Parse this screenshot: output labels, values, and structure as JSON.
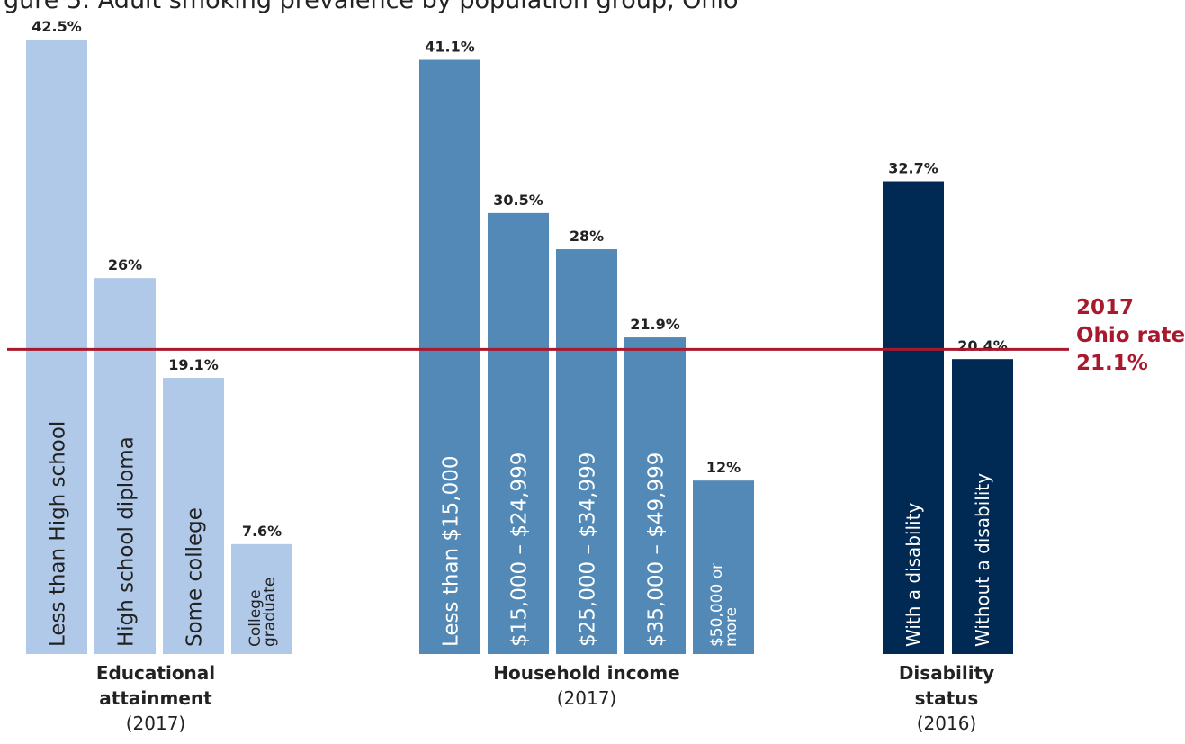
{
  "title": "gure 5: Adult smoking prevalence by population group, Ohio",
  "colors": {
    "education": "#b0c9e8",
    "income": "#5289b6",
    "disability": "#002a54",
    "reference": "#a8192e",
    "value_label": "#222222",
    "bar_label_light": "#222222",
    "bar_label_dark": "#ffffff"
  },
  "reference_line": {
    "value": 21.1,
    "label_lines": [
      "2017",
      "Ohio rate",
      "21.1%"
    ]
  },
  "groups": [
    {
      "name": "Educational attainment",
      "title_lines": [
        "Educational",
        "attainment"
      ],
      "year": "(2017)"
    },
    {
      "name": "Household income",
      "title_lines": [
        "Household income"
      ],
      "year": "(2017)"
    },
    {
      "name": "Disability status",
      "title_lines": [
        "Disability",
        "status"
      ],
      "year": "(2016)"
    }
  ],
  "chart_data": {
    "type": "bar",
    "title": "",
    "xlabel": "",
    "ylabel": "",
    "ylim": [
      0,
      45
    ],
    "grid": false,
    "unit": "%",
    "series": [
      {
        "group": "Educational attainment",
        "categories": [
          "Less than High school",
          "High school diploma",
          "Some college",
          "College graduate"
        ],
        "values": [
          42.5,
          26,
          19.1,
          7.6
        ],
        "labels": [
          "42.5%",
          "26%",
          "19.1%",
          "7.6%"
        ]
      },
      {
        "group": "Household income",
        "categories": [
          "Less than $15,000",
          "$15,000 – $24,999",
          "$25,000 – $34,999",
          "$35,000 – $49,999",
          "$50,000 or more"
        ],
        "values": [
          41.1,
          30.5,
          28,
          21.9,
          12
        ],
        "labels": [
          "41.1%",
          "30.5%",
          "28%",
          "21.9%",
          "12%"
        ]
      },
      {
        "group": "Disability status",
        "categories": [
          "With a disability",
          "Without a disability"
        ],
        "values": [
          32.7,
          20.4
        ],
        "labels": [
          "32.7%",
          "20.4%"
        ]
      }
    ]
  }
}
